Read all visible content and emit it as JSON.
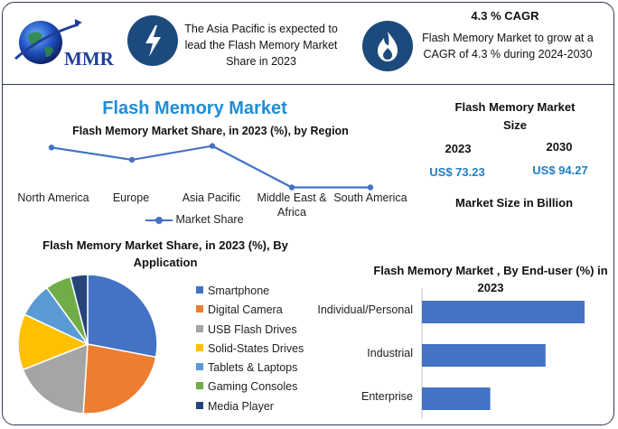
{
  "header": {
    "logo_text": "MMR",
    "highlight_1": "The Asia Pacific is expected to lead the Flash Memory Market Share in 2023",
    "cagr_title": "4.3 % CAGR",
    "highlight_2": "Flash Memory Market to grow at a CAGR of 4.3 % during 2024-2030",
    "icons": [
      "globe-logo-icon",
      "lightning-bolt-icon",
      "flame-icon"
    ],
    "accent_color": "#1c4a7c"
  },
  "main_title": "Flash Memory Market",
  "market_size": {
    "title": "Flash Memory Market Size",
    "year_1": "2023",
    "value_1": "US$ 73.23",
    "year_2": "2030",
    "value_2": "US$ 94.27",
    "unit_note": "Market Size in Billion",
    "value_color": "#1f7fc4"
  },
  "chart_data": [
    {
      "type": "line",
      "title": "Flash Memory Market Share, in 2023 (%), by Region",
      "categories": [
        "North America",
        "Europe",
        "Asia Pacific",
        "Middle East & Africa",
        "South America"
      ],
      "series": [
        {
          "name": "Market Share",
          "values": [
            31,
            23,
            32,
            5,
            5
          ],
          "color": "#4472c4"
        }
      ],
      "ylim": [
        0,
        40
      ],
      "grid": false,
      "legend": "bottom"
    },
    {
      "type": "pie",
      "title": "Flash Memory Market Share, in 2023 (%), By Application",
      "labels": [
        "Smartphone",
        "Digital Camera",
        "USB Flash Drives",
        "Solid-States Drives",
        "Tablets & Laptops",
        "Gaming Consoles",
        "Media Player"
      ],
      "values": [
        28,
        23,
        18,
        13,
        8,
        6,
        4
      ],
      "colors": [
        "#4472c4",
        "#ed7d31",
        "#a5a5a5",
        "#ffc000",
        "#5b9bd5",
        "#70ad47",
        "#264478"
      ],
      "legend": "right"
    },
    {
      "type": "bar",
      "orientation": "horizontal",
      "title": "Flash Memory Market , By End-user (%) in 2023",
      "categories": [
        "Individual/Personal",
        "Industrial",
        "Enterprise"
      ],
      "values": [
        50,
        38,
        21
      ],
      "xlim": [
        0,
        55
      ],
      "color": "#4472c4",
      "grid": false,
      "legend": "none"
    }
  ]
}
